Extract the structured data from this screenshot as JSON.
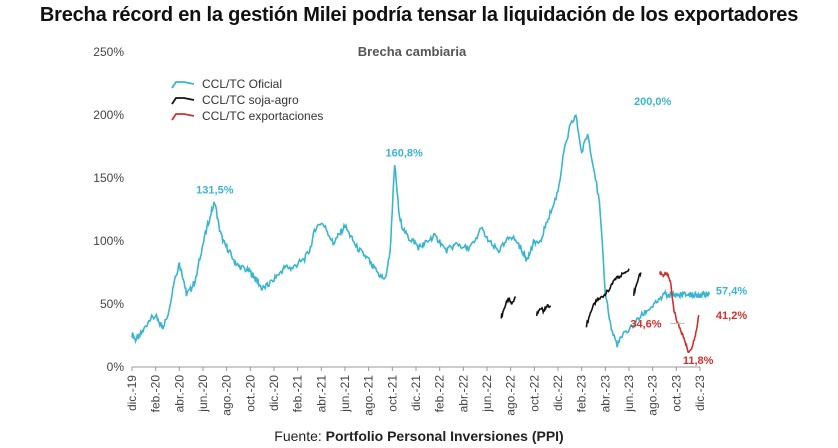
{
  "headline": "Brecha récord en la gestión Milei podría tensar la liquidación de los exportadores",
  "source": {
    "prefix": "Fuente: ",
    "name": "Portfolio Personal Inversiones (PPI)"
  },
  "chart_data": {
    "type": "line",
    "title": "Brecha cambiaria",
    "xlabel": "",
    "ylabel": "",
    "ylim": [
      0,
      250
    ],
    "yticks": [
      0,
      50,
      100,
      150,
      200,
      250
    ],
    "ytick_labels": [
      "0%",
      "50%",
      "100%",
      "150%",
      "200%",
      "250%"
    ],
    "x_tick_labels": [
      "dic.-19",
      "feb.-20",
      "abr.-20",
      "jun.-20",
      "ago.-20",
      "oct.-20",
      "dic.-20",
      "feb.-21",
      "abr.-21",
      "jun.-21",
      "ago.-21",
      "oct.-21",
      "dic.-21",
      "feb.-22",
      "abr.-22",
      "jun.-22",
      "ago.-22",
      "oct.-22",
      "dic.-22",
      "feb.-23",
      "abr.-23",
      "jun.-23",
      "ago.-23",
      "oct.-23",
      "dic.-23"
    ],
    "x_unit": "month index from dic.-19",
    "grid": false,
    "legend_position": "top-left",
    "series": [
      {
        "name": "CCL/TC Oficial",
        "color": "#3bb5cf",
        "x": [
          0,
          0.3,
          0.6,
          1,
          1.5,
          2,
          2.3,
          2.6,
          3,
          3.3,
          3.6,
          4,
          4.3,
          4.6,
          5,
          5.4,
          5.8,
          6.2,
          6.6,
          7,
          7.4,
          7.8,
          8.2,
          8.6,
          9,
          9.5,
          10,
          10.3,
          10.6,
          11,
          11.5,
          12,
          12.5,
          13,
          13.5,
          14,
          14.5,
          15,
          15.5,
          16,
          16.5,
          17,
          17.5,
          18,
          18.5,
          19,
          19.5,
          20,
          20.3,
          20.6,
          21,
          21.4,
          21.8,
          22.2,
          22.6,
          23,
          23.4,
          23.8,
          24.2,
          24.6,
          25,
          25.5,
          26,
          26.5,
          27,
          27.5,
          28,
          28.5,
          29,
          29.5,
          30,
          30.5,
          31,
          31.5,
          32,
          32.5,
          33,
          33.3,
          33.6,
          34,
          34.5,
          35,
          35.5,
          36,
          36.5,
          37,
          37.5,
          38,
          38.5,
          39,
          39.5,
          40,
          40.5,
          41,
          41.5,
          42,
          42.5,
          43,
          43.5,
          44,
          44.5,
          45,
          45.3,
          45.6,
          46,
          46.3,
          46.6,
          47,
          47.2,
          47.4,
          47.6,
          47.8,
          48,
          48.2,
          48.4,
          48.6,
          48.8
        ],
        "values": [
          26,
          22,
          24,
          30,
          38,
          40,
          35,
          32,
          40,
          55,
          70,
          82,
          72,
          58,
          62,
          70,
          90,
          105,
          120,
          131.5,
          108,
          98,
          92,
          85,
          80,
          78,
          75,
          72,
          68,
          62,
          65,
          70,
          75,
          80,
          78,
          82,
          85,
          92,
          110,
          115,
          108,
          98,
          105,
          112,
          103,
          95,
          90,
          85,
          80,
          77,
          72,
          70,
          90,
          160.8,
          118,
          108,
          102,
          100,
          95,
          97,
          100,
          104,
          100,
          92,
          95,
          98,
          95,
          94,
          100,
          110,
          102,
          96,
          92,
          98,
          104,
          100,
          92,
          86,
          90,
          100,
          98,
          115,
          125,
          140,
          170,
          190,
          200,
          170,
          185,
          160,
          130,
          60,
          30,
          18,
          25,
          30,
          35,
          40,
          45,
          48,
          52,
          57.4,
          57.4,
          57.4,
          57.4,
          57.4,
          57.4,
          57.4,
          57.4,
          57.4,
          57.4,
          57.4,
          57.4,
          57.4,
          57.4,
          57.4,
          57.4
        ]
      },
      {
        "name": "CCL/TC soja-agro",
        "color": "#111111",
        "segments": [
          {
            "x": [
              31.2,
              31.5,
              31.8,
              32.1,
              32.4
            ],
            "values": [
              40,
              48,
              54,
              50,
              56
            ]
          },
          {
            "x": [
              34.2,
              34.5,
              34.8,
              35.1,
              35.4
            ],
            "values": [
              42,
              47,
              44,
              49,
              48
            ]
          },
          {
            "x": [
              38.4,
              38.8,
              39.2,
              39.6,
              40.0,
              40.4,
              40.8,
              41.2,
              41.6,
              42.0
            ],
            "values": [
              33,
              45,
              52,
              55,
              58,
              62,
              70,
              72,
              75,
              78
            ]
          },
          {
            "x": [
              42.4,
              42.7,
              43.0
            ],
            "values": [
              58,
              68,
              75
            ]
          }
        ]
      },
      {
        "name": "CCL/TC exportaciones",
        "color": "#d0312d",
        "segments": [
          {
            "x": [
              44.6,
              44.9,
              45.2,
              45.5,
              45.8,
              46.1,
              46.4,
              46.7,
              47.0,
              47.3,
              47.6,
              47.9
            ],
            "values": [
              75,
              73,
              74,
              68,
              45,
              34.6,
              28,
              22,
              11.8,
              16,
              25,
              41.2
            ]
          }
        ]
      }
    ],
    "annotations": [
      {
        "text": "131,5%",
        "x": 7,
        "y": 131.5,
        "color": "#3bb5cf"
      },
      {
        "text": "160,8%",
        "x": 23,
        "y": 160.8,
        "color": "#3bb5cf"
      },
      {
        "text": "200,0%",
        "x": 44,
        "y": 200,
        "color": "#3bb5cf"
      },
      {
        "text": "57,4%",
        "x": 48.5,
        "y": 57.4,
        "color": "#3bb5cf"
      },
      {
        "text": "41,2%",
        "x": 48.5,
        "y": 41.2,
        "color": "#d0312d"
      },
      {
        "text": "34,6%",
        "x": 46.1,
        "y": 34.6,
        "color": "#d0312d"
      },
      {
        "text": "11,8%",
        "x": 47.0,
        "y": 11.8,
        "color": "#d0312d"
      }
    ]
  }
}
